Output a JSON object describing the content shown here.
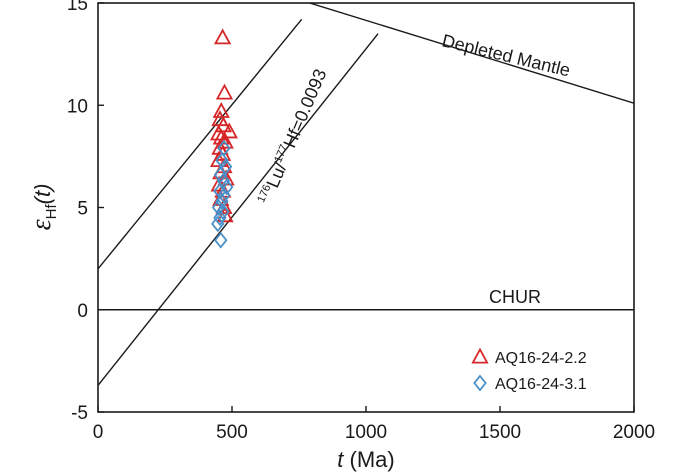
{
  "chart_data": {
    "type": "scatter",
    "xlabel": {
      "var": "t",
      "rest": " (Ma)"
    },
    "ylabel": {
      "symbol": "ε",
      "sub": "Hf",
      "var": "(t)"
    },
    "xlim": [
      0,
      2000
    ],
    "ylim": [
      -5,
      15
    ],
    "x_ticks": [
      0,
      500,
      1000,
      1500,
      2000
    ],
    "y_ticks": [
      -5,
      0,
      5,
      10,
      15
    ],
    "grid": false,
    "legend_position": "bottom-right",
    "reference_lines": [
      {
        "name": "Depleted Mantle",
        "label": "Depleted Mantle",
        "x": [
          0,
          2000
        ],
        "y": [
          18.2,
          10.1
        ]
      },
      {
        "name": "CHUR",
        "label": "CHUR",
        "x": [
          0,
          2000
        ],
        "y": [
          0,
          0
        ]
      },
      {
        "name": "evolution-line-upper",
        "x": [
          0,
          760
        ],
        "y": [
          2.0,
          14.2
        ]
      },
      {
        "name": "evolution-line-lower",
        "x": [
          0,
          1045
        ],
        "y": [
          -3.7,
          13.5
        ]
      }
    ],
    "evolution_label": {
      "pre1": "176",
      "mid1": "Lu/",
      "pre2": "177",
      "mid2": "Hf=0.0093"
    },
    "series": [
      {
        "name": "AQ16-24-2.2",
        "marker": "triangle",
        "color": "#d62728",
        "points": [
          [
            465,
            13.3
          ],
          [
            472,
            10.6
          ],
          [
            460,
            9.7
          ],
          [
            455,
            9.3
          ],
          [
            468,
            9.0
          ],
          [
            490,
            8.7
          ],
          [
            450,
            8.6
          ],
          [
            460,
            8.4
          ],
          [
            475,
            8.2
          ],
          [
            455,
            7.9
          ],
          [
            465,
            7.6
          ],
          [
            450,
            7.3
          ],
          [
            470,
            7.0
          ],
          [
            458,
            6.7
          ],
          [
            478,
            6.4
          ],
          [
            452,
            6.1
          ],
          [
            466,
            5.8
          ],
          [
            458,
            5.4
          ],
          [
            470,
            5.0
          ],
          [
            474,
            4.6
          ]
        ]
      },
      {
        "name": "AQ16-24-3.1",
        "marker": "diamond",
        "color": "#4a90c8",
        "points": [
          [
            470,
            7.9
          ],
          [
            463,
            7.3
          ],
          [
            476,
            7.0
          ],
          [
            457,
            6.6
          ],
          [
            468,
            6.3
          ],
          [
            480,
            6.0
          ],
          [
            455,
            5.8
          ],
          [
            470,
            5.6
          ],
          [
            462,
            5.3
          ],
          [
            450,
            5.0
          ],
          [
            466,
            4.8
          ],
          [
            455,
            4.5
          ],
          [
            447,
            4.2
          ],
          [
            458,
            3.4
          ]
        ]
      }
    ]
  }
}
